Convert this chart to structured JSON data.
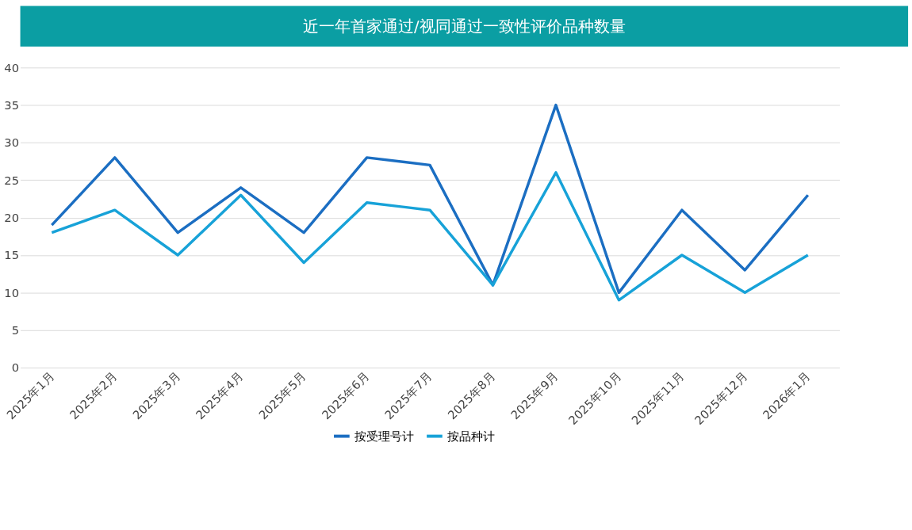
{
  "chart_data": {
    "type": "line",
    "title": "近一年首家通过/视同通过一致性评价品种数量",
    "categories": [
      "2025年1月",
      "2025年2月",
      "2025年3月",
      "2025年4月",
      "2025年5月",
      "2025年6月",
      "2025年7月",
      "2025年8月",
      "2025年9月",
      "2025年10月",
      "2025年11月",
      "2025年12月",
      "2026年1月"
    ],
    "series": [
      {
        "name": "按受理号计",
        "color": "#1b6ec2",
        "values": [
          19,
          28,
          18,
          24,
          18,
          28,
          27,
          11,
          35,
          10,
          21,
          13,
          23
        ]
      },
      {
        "name": "按品种计",
        "color": "#17a2d8",
        "values": [
          18,
          21,
          15,
          23,
          14,
          22,
          21,
          11,
          26,
          9,
          15,
          10,
          15
        ]
      }
    ],
    "ylim": [
      0,
      40
    ],
    "yticks": [
      0,
      5,
      10,
      15,
      20,
      25,
      30,
      35,
      40
    ],
    "grid": "y",
    "legend": "bottom",
    "marker": "none",
    "line_style": "solid"
  }
}
